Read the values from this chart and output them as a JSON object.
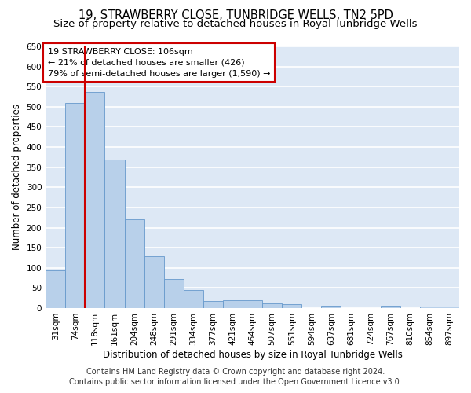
{
  "title": "19, STRAWBERRY CLOSE, TUNBRIDGE WELLS, TN2 5PD",
  "subtitle": "Size of property relative to detached houses in Royal Tunbridge Wells",
  "xlabel": "Distribution of detached houses by size in Royal Tunbridge Wells",
  "ylabel": "Number of detached properties",
  "footer_line1": "Contains HM Land Registry data © Crown copyright and database right 2024.",
  "footer_line2": "Contains public sector information licensed under the Open Government Licence v3.0.",
  "annotation_line1": "19 STRAWBERRY CLOSE: 106sqm",
  "annotation_line2": "← 21% of detached houses are smaller (426)",
  "annotation_line3": "79% of semi-detached houses are larger (1,590) →",
  "bar_labels": [
    "31sqm",
    "74sqm",
    "118sqm",
    "161sqm",
    "204sqm",
    "248sqm",
    "291sqm",
    "334sqm",
    "377sqm",
    "421sqm",
    "464sqm",
    "507sqm",
    "551sqm",
    "594sqm",
    "637sqm",
    "681sqm",
    "724sqm",
    "767sqm",
    "810sqm",
    "854sqm",
    "897sqm"
  ],
  "bar_values": [
    93,
    510,
    537,
    369,
    221,
    128,
    72,
    44,
    17,
    20,
    20,
    11,
    9,
    0,
    5,
    0,
    0,
    5,
    0,
    4,
    4
  ],
  "bar_color": "#b8d0ea",
  "bar_edge_color": "#6699cc",
  "reference_line_x": 1.5,
  "reference_line_color": "#cc0000",
  "ylim": [
    0,
    650
  ],
  "yticks": [
    0,
    50,
    100,
    150,
    200,
    250,
    300,
    350,
    400,
    450,
    500,
    550,
    600,
    650
  ],
  "background_color": "#dde8f5",
  "grid_color": "#ffffff",
  "title_fontsize": 10.5,
  "subtitle_fontsize": 9.5,
  "axis_label_fontsize": 8.5,
  "tick_fontsize": 7.5,
  "annotation_fontsize": 8,
  "footer_fontsize": 7
}
